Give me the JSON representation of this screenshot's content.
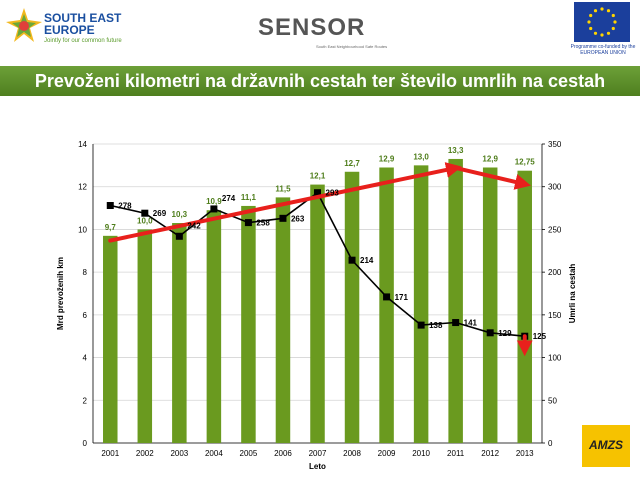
{
  "header": {
    "see_logo_title": "SOUTH EAST EUROPE",
    "see_logo_tagline": "Jointly for our common future",
    "sensor_logo": "SENSOR",
    "sensor_subtitle": "South East Neighbourhood Safe Routes",
    "eu_text": "Programme co-funded by the EUROPEAN UNION"
  },
  "title": "Prevoženi kilometri na državnih cestah ter število umrlih na cestah",
  "amzs_logo": "AMZS",
  "colors": {
    "bar": "#6a9a1f",
    "bar_label": "#4e7d1a",
    "line": "#000000",
    "trend": "#e8201c",
    "title_bar": "#5e8f2a"
  },
  "chart_data": {
    "type": "bar",
    "categories": [
      "2001",
      "2002",
      "2003",
      "2004",
      "2005",
      "2006",
      "2007",
      "2008",
      "2009",
      "2010",
      "2011",
      "2012",
      "2013"
    ],
    "xlabel": "Leto",
    "ylabel": "Mrd prevoženih km",
    "y2label": "Umrli na cestah",
    "ylim": [
      0,
      14
    ],
    "y2lim": [
      0,
      350
    ],
    "yticks": [
      0,
      2,
      4,
      6,
      8,
      10,
      12,
      14
    ],
    "y2ticks": [
      0,
      50,
      100,
      150,
      200,
      250,
      300,
      350
    ],
    "grid": true,
    "series": [
      {
        "values": [
          9.7,
          10.0,
          10.3,
          10.9,
          11.1,
          11.5,
          12.1,
          12.7,
          12.9,
          13.0,
          13.3,
          12.9,
          12.75
        ],
        "labels": [
          "9,7",
          "10,0",
          "10,3",
          "10,9",
          "11,1",
          "11,5",
          "12,1",
          "12,7",
          "12,9",
          "13,0",
          "13,3",
          "12,9",
          "12,75"
        ],
        "axis": "left",
        "kind": "bar"
      },
      {
        "values": [
          278,
          269,
          242,
          274,
          258,
          263,
          293,
          214,
          171,
          138,
          141,
          129,
          125
        ],
        "labels": [
          "278",
          "269",
          "242",
          "274",
          "258",
          "263",
          "293",
          "214",
          "171",
          "138",
          "141",
          "129",
          "125"
        ],
        "axis": "right",
        "kind": "line"
      }
    ],
    "trend_arrows": [
      {
        "from": [
          "2001",
          237
        ],
        "to": [
          "2011",
          322
        ],
        "axis": "right"
      },
      {
        "from": [
          "2011",
          322
        ],
        "to": [
          "2013",
          303
        ],
        "axis": "right"
      },
      {
        "from": [
          "2013",
          125
        ],
        "to": [
          "2013",
          109
        ],
        "axis": "right"
      }
    ]
  }
}
